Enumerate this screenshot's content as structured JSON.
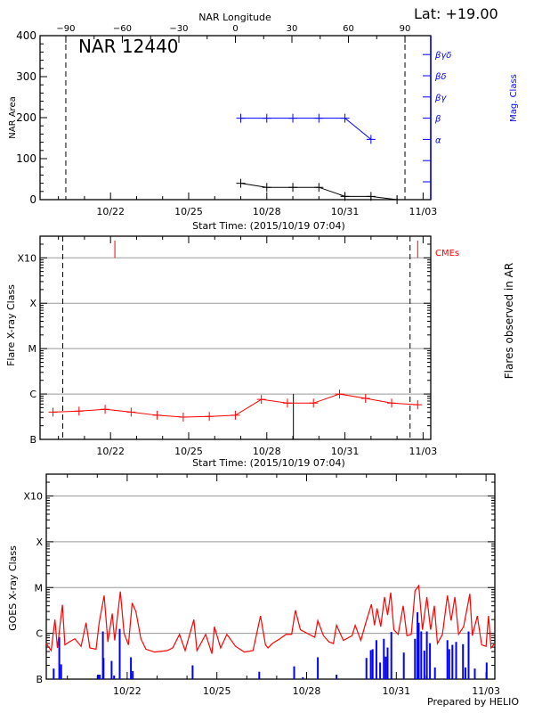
{
  "header": {
    "lat_label": "Lat: +19.00",
    "longitude_axis_label": "NAR Longitude",
    "footer": "Prepared by HELIO"
  },
  "time_range": [
    "2015/10/19 07:04",
    "2015/11/03 07:04"
  ],
  "x_tick_labels": [
    "10/22",
    "10/25",
    "10/28",
    "10/31",
    "11/03"
  ],
  "chart_data": [
    {
      "type": "line",
      "title": "NAR 12440",
      "xlabel": "Start Time: (2015/10/19 07:04)",
      "ylabel": "NAR Area",
      "y2label": "Mag. Class",
      "ylim": [
        0,
        400
      ],
      "yticks": [
        "0",
        "100",
        "200",
        "300",
        "400"
      ],
      "top_axis": {
        "label": "NAR Longitude",
        "ticks": [
          "-90",
          "-60",
          "-30",
          "0",
          "30",
          "60",
          "90"
        ],
        "limb_lines": [
          -90,
          90
        ]
      },
      "y2_ticks": [
        "",
        "",
        "α",
        "β",
        "βγ",
        "βδ",
        "βγδ"
      ],
      "colors": {
        "area": "#000000",
        "mag_class": "#0000ff"
      },
      "area_series": {
        "x": [
          "10/27 00:00",
          "10/28 00:00",
          "10/29 00:00",
          "10/30 00:00",
          "10/31 00:00",
          "11/01 00:00",
          "11/02 00:00"
        ],
        "values": [
          40,
          30,
          30,
          30,
          8,
          8,
          0
        ]
      },
      "mag_class_series": {
        "x": [
          "10/27 00:00",
          "10/28 00:00",
          "10/29 00:00",
          "10/30 00:00",
          "10/31 00:00",
          "11/01 00:00"
        ],
        "values": [
          "β",
          "β",
          "β",
          "β",
          "β",
          "α"
        ]
      }
    },
    {
      "type": "line",
      "xlabel": "Start Time: (2015/10/19 07:04)",
      "ylabel": "Flare X-ray Class",
      "y2label": "Flares observed in AR",
      "yscale": "log",
      "ylim": [
        1e-07,
        0.003
      ],
      "yticks": [
        {
          "label": "B",
          "value": 1e-07
        },
        {
          "label": "C",
          "value": 1e-06
        },
        {
          "label": "M",
          "value": 1e-05
        },
        {
          "label": "X",
          "value": 0.0001
        },
        {
          "label": "X10",
          "value": 0.001
        }
      ],
      "grid": true,
      "colors": {
        "max_flux": "#ff0000",
        "flare": "#000000",
        "cme": "#ff0000"
      },
      "series": [
        {
          "x": [
            "10/19 19:00",
            "10/20 19:00",
            "10/21 19:00",
            "10/22 19:00",
            "10/23 19:00",
            "10/24 19:00",
            "10/25 19:00",
            "10/26 19:00",
            "10/27 19:00",
            "10/28 19:00",
            "10/29 19:00",
            "10/30 19:00",
            "10/31 19:00",
            "11/01 19:00",
            "11/02 19:00"
          ],
          "values": [
            4e-07,
            4.2e-07,
            4.6e-07,
            4e-07,
            3.4e-07,
            3.1e-07,
            3.2e-07,
            3.4e-07,
            7.6e-07,
            6.3e-07,
            6.3e-07,
            1e-06,
            8e-07,
            6.3e-07,
            5.8e-07
          ]
        }
      ],
      "flares_in_ar": [
        {
          "x": "10/29 00:30",
          "value": 1e-06
        }
      ],
      "cmes": {
        "label": "CMEs",
        "x": [
          "10/22 04:00",
          "11/02 19:00"
        ]
      },
      "limb_times": [
        "10/20 04:00",
        "11/02 12:00"
      ]
    },
    {
      "type": "line",
      "ylabel": "GOES X-ray Class",
      "yscale": "log",
      "ylim": [
        1e-07,
        0.003
      ],
      "yticks": [
        {
          "label": "B",
          "value": 1e-07
        },
        {
          "label": "C",
          "value": 1e-06
        },
        {
          "label": "M",
          "value": 1e-05
        },
        {
          "label": "X",
          "value": 0.0001
        },
        {
          "label": "X10",
          "value": 0.001
        }
      ],
      "grid": true,
      "colors": {
        "long_channel": "#ff0000",
        "short_channel": "#0000ff"
      },
      "series": [
        {
          "data": [
            [
              "10/19 07:00",
              6e-07
            ],
            [
              "10/19 11:00",
              4.2e-07
            ],
            [
              "10/19 14:00",
              2e-06
            ],
            [
              "10/19 16:00",
              4.8e-07
            ],
            [
              "10/19 20:00",
              4.2e-06
            ],
            [
              "10/19 22:00",
              5.6e-07
            ],
            [
              "10/20 01:30",
              6.5e-07
            ],
            [
              "10/20 06:00",
              7.6e-07
            ],
            [
              "10/20 11:00",
              5.2e-07
            ],
            [
              "10/20 15:00",
              1.7e-06
            ],
            [
              "10/20 18:00",
              4.8e-07
            ],
            [
              "10/20 23:00",
              4.5e-07
            ],
            [
              "10/21 01:30",
              1.7e-06
            ],
            [
              "10/21 05:30",
              6.7e-06
            ],
            [
              "10/21 08:30",
              6.5e-07
            ],
            [
              "10/21 12:00",
              2.7e-06
            ],
            [
              "10/21 14:00",
              7e-07
            ],
            [
              "10/21 18:30",
              8.2e-06
            ],
            [
              "10/21 21:30",
              1e-06
            ],
            [
              "10/22 01:00",
              5.6e-07
            ],
            [
              "10/22 04:00",
              4.6e-06
            ],
            [
              "10/22 07:00",
              3e-06
            ],
            [
              "10/22 11:00",
              7.6e-07
            ],
            [
              "10/22 15:00",
              4.5e-07
            ],
            [
              "10/22 22:00",
              3.9e-07
            ],
            [
              "10/23 08:00",
              4.2e-07
            ],
            [
              "10/23 12:30",
              4.8e-07
            ],
            [
              "10/23 18:00",
              9.5e-07
            ],
            [
              "10/23 22:30",
              4.2e-07
            ],
            [
              "10/24 05:30",
              2e-06
            ],
            [
              "10/24 08:00",
              4.2e-07
            ],
            [
              "10/24 15:00",
              9.5e-07
            ],
            [
              "10/24 20:00",
              3.6e-07
            ],
            [
              "10/24 22:00",
              1.4e-06
            ],
            [
              "10/25 03:00",
              4.8e-07
            ],
            [
              "10/25 08:00",
              9.5e-07
            ],
            [
              "10/25 15:00",
              5.2e-07
            ],
            [
              "10/25 22:00",
              3.9e-07
            ],
            [
              "10/26 05:00",
              4.2e-07
            ],
            [
              "10/26 11:00",
              2.4e-06
            ],
            [
              "10/26 15:00",
              5.6e-07
            ],
            [
              "10/26 17:00",
              4.8e-07
            ],
            [
              "10/26 20:30",
              6e-07
            ],
            [
              "10/27 02:30",
              7.6e-07
            ],
            [
              "10/27 07:30",
              9.5e-07
            ],
            [
              "10/27 12:00",
              9.5e-07
            ],
            [
              "10/27 15:00",
              3.2e-06
            ],
            [
              "10/27 19:00",
              1.2e-06
            ],
            [
              "10/28 02:00",
              9.5e-07
            ],
            [
              "10/28 06:30",
              8.2e-07
            ],
            [
              "10/28 09:00",
              1.9e-06
            ],
            [
              "10/28 13:30",
              8.9e-07
            ],
            [
              "10/28 18:00",
              6.5e-07
            ],
            [
              "10/28 21:30",
              6e-07
            ],
            [
              "10/29 00:00",
              1.5e-06
            ],
            [
              "10/29 05:30",
              7e-07
            ],
            [
              "10/29 12:30",
              8.9e-07
            ],
            [
              "10/29 15:00",
              1.5e-06
            ],
            [
              "10/29 19:30",
              7e-07
            ],
            [
              "10/29 23:30",
              1.7e-06
            ],
            [
              "10/30 04:00",
              4.3e-06
            ],
            [
              "10/30 06:30",
              1.5e-06
            ],
            [
              "10/30 08:30",
              3.5e-06
            ],
            [
              "10/30 11:30",
              1.4e-06
            ],
            [
              "10/30 14:30",
              6.2e-06
            ],
            [
              "10/30 17:00",
              2.5e-06
            ],
            [
              "10/30 19:30",
              7.8e-06
            ],
            [
              "10/30 22:00",
              1.2e-06
            ],
            [
              "10/31 01:30",
              9.5e-07
            ],
            [
              "10/31 05:30",
              4e-06
            ],
            [
              "10/31 08:30",
              8.9e-07
            ],
            [
              "10/31 12:00",
              9.5e-07
            ],
            [
              "10/31 15:00",
              8.5e-06
            ],
            [
              "10/31 18:00",
              1.1e-05
            ],
            [
              "10/31 21:00",
              1.2e-06
            ],
            [
              "11/01 00:30",
              6.2e-06
            ],
            [
              "11/01 03:30",
              1.2e-06
            ],
            [
              "11/01 06:30",
              4e-06
            ],
            [
              "11/01 09:00",
              6e-07
            ],
            [
              "11/01 13:00",
              9.5e-07
            ],
            [
              "11/01 17:00",
              6.7e-06
            ],
            [
              "11/01 20:00",
              1.9e-06
            ],
            [
              "11/01 23:00",
              6.2e-06
            ],
            [
              "11/02 02:00",
              9.5e-07
            ],
            [
              "11/02 06:00",
              1.4e-06
            ],
            [
              "11/02 11:00",
              7.3e-06
            ],
            [
              "11/02 13:00",
              8.9e-07
            ],
            [
              "11/02 17:00",
              2.4e-06
            ],
            [
              "11/02 20:30",
              5.6e-07
            ],
            [
              "11/03 00:00",
              5.2e-07
            ],
            [
              "11/03 02:00",
              2.4e-06
            ],
            [
              "11/03 04:00",
              4.8e-07
            ],
            [
              "11/03 07:00",
              6e-07
            ]
          ]
        },
        {
          "data": [
            [
              "10/19 13:00",
              1.7e-07
            ],
            [
              "10/19 17:30",
              8.3e-07
            ],
            [
              "10/19 19:00",
              2.1e-07
            ],
            [
              "10/21 00:30",
              1.25e-07
            ],
            [
              "10/21 02:00",
              1.25e-07
            ],
            [
              "10/21 04:30",
              1.1e-06
            ],
            [
              "10/21 05:00",
              2.9e-07
            ],
            [
              "10/21 11:30",
              2.5e-07
            ],
            [
              "10/21 13:30",
              1.2e-07
            ],
            [
              "10/21 18:00",
              1.25e-06
            ],
            [
              "10/22 03:00",
              3e-07
            ],
            [
              "10/22 04:30",
              1.5e-07
            ],
            [
              "10/24 04:30",
              2e-07
            ],
            [
              "10/26 10:00",
              1.45e-07
            ],
            [
              "10/27 14:00",
              1.9e-07
            ],
            [
              "10/27 21:00",
              1.1e-07
            ],
            [
              "10/28 09:00",
              3e-07
            ],
            [
              "10/29 00:00",
              1.25e-07
            ],
            [
              "10/30 00:00",
              2.9e-07
            ],
            [
              "10/30 03:30",
              4.3e-07
            ],
            [
              "10/30 05:00",
              4.5e-07
            ],
            [
              "10/30 08:00",
              7.1e-07
            ],
            [
              "10/30 11:00",
              2.3e-07
            ],
            [
              "10/30 14:00",
              7.6e-07
            ],
            [
              "10/30 15:30",
              3.1e-07
            ],
            [
              "10/30 17:00",
              4.9e-07
            ],
            [
              "10/30 20:00",
              1.07e-06
            ],
            [
              "10/31 06:00",
              3.8e-07
            ],
            [
              "10/31 15:00",
              7.6e-07
            ],
            [
              "10/31 17:00",
              2.9e-06
            ],
            [
              "10/31 18:00",
              1.7e-06
            ],
            [
              "10/31 20:00",
              1.1e-06
            ],
            [
              "10/31 22:30",
              4.2e-07
            ],
            [
              "11/01 00:30",
              1.1e-06
            ],
            [
              "11/01 03:00",
              6.1e-07
            ],
            [
              "11/01 07:00",
              1.8e-07
            ],
            [
              "11/01 17:00",
              7.1e-07
            ],
            [
              "11/01 18:30",
              4.5e-07
            ],
            [
              "11/01 21:00",
              5.6e-07
            ],
            [
              "11/02 00:00",
              6.5e-07
            ],
            [
              "11/02 05:30",
              5.8e-07
            ],
            [
              "11/02 07:30",
              1.8e-07
            ],
            [
              "11/02 10:00",
              1.1e-06
            ],
            [
              "11/02 15:00",
              1.7e-07
            ],
            [
              "11/03 00:30",
              2.3e-07
            ]
          ]
        }
      ]
    }
  ]
}
